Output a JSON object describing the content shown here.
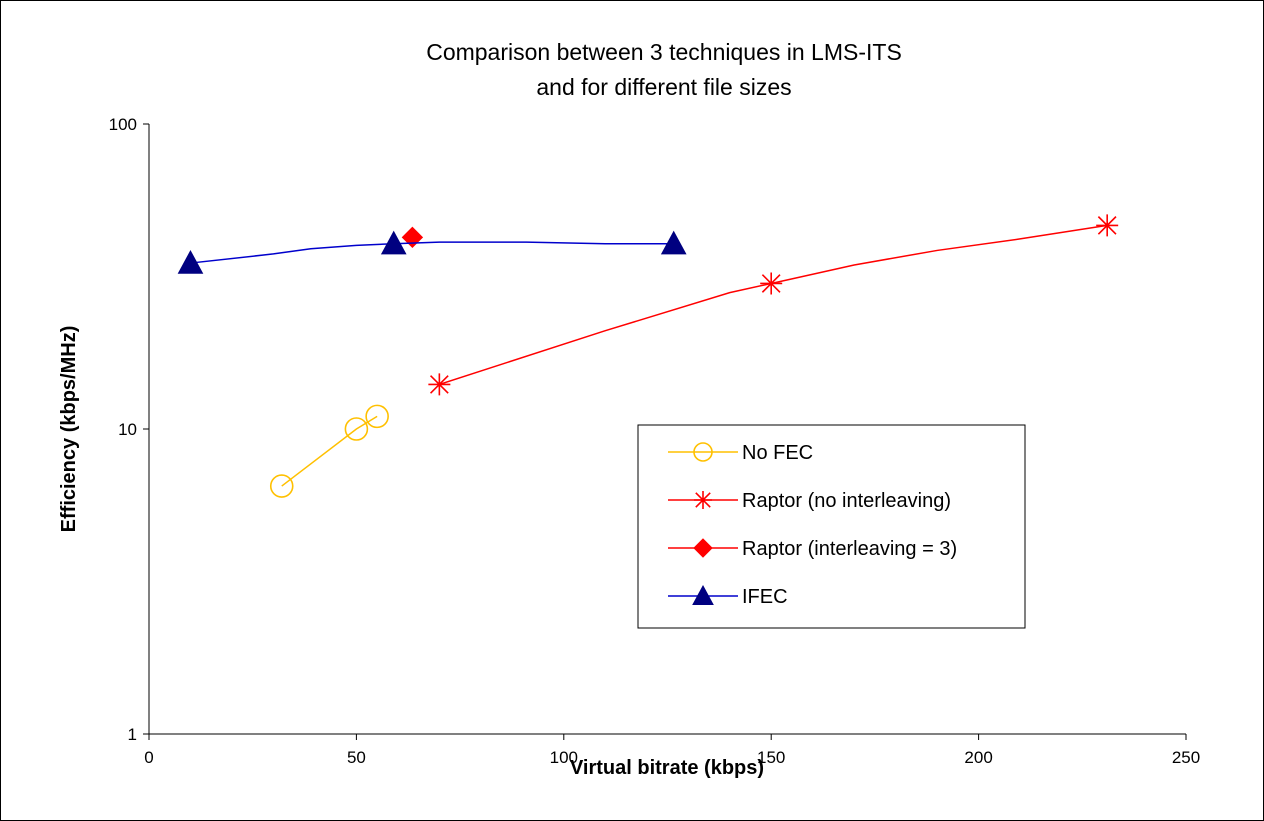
{
  "chart_data": {
    "type": "line",
    "title": [
      "Comparison between 3 techniques in LMS-ITS",
      "and for different file sizes"
    ],
    "xlabel": "Virtual bitrate (kbps)",
    "ylabel": "Efficiency (kbps/MHz)",
    "xlim": [
      0,
      250
    ],
    "ylim": [
      1,
      100
    ],
    "yscale": "log",
    "xticks": [
      "0",
      "50",
      "100",
      "150",
      "200",
      "250"
    ],
    "yticks": [
      "1",
      "10",
      "100"
    ],
    "grid": false,
    "legend_position": "center-right",
    "series": [
      {
        "name": "No FEC",
        "color": "#FFC000",
        "marker": "circle",
        "marker_color": "#FFC000",
        "line": [
          [
            32,
            6.5
          ],
          [
            50,
            10
          ],
          [
            55,
            11
          ]
        ],
        "points": [
          [
            32,
            6.5
          ],
          [
            50,
            10
          ],
          [
            55,
            11
          ]
        ]
      },
      {
        "name": "Raptor (no interleaving)",
        "color": "#FF0000",
        "marker": "asterisk",
        "marker_color": "#FF0000",
        "line": [
          [
            70,
            14
          ],
          [
            110,
            21
          ],
          [
            140,
            28
          ],
          [
            150,
            30
          ],
          [
            170,
            34.5
          ],
          [
            190,
            38.5
          ],
          [
            210,
            42
          ],
          [
            231,
            46.5
          ]
        ],
        "points": [
          [
            70,
            14
          ],
          [
            150,
            30
          ],
          [
            231,
            46.5
          ]
        ]
      },
      {
        "name": "Raptor (interleaving = 3)",
        "color": "#FF0000",
        "marker": "diamond",
        "marker_color": "#FF0000",
        "line": [],
        "points": [
          [
            63.5,
            42.5
          ]
        ]
      },
      {
        "name": "IFEC",
        "color": "#0000CC",
        "marker": "triangle",
        "marker_color": "#000080",
        "line": [
          [
            10,
            35
          ],
          [
            30,
            37.5
          ],
          [
            39,
            39
          ],
          [
            50,
            40
          ],
          [
            59,
            40.5
          ],
          [
            70,
            41
          ],
          [
            91,
            41
          ],
          [
            110,
            40.5
          ],
          [
            126.5,
            40.5
          ]
        ],
        "points": [
          [
            10,
            35
          ],
          [
            59,
            40.5
          ],
          [
            126.5,
            40.5
          ]
        ]
      }
    ]
  }
}
